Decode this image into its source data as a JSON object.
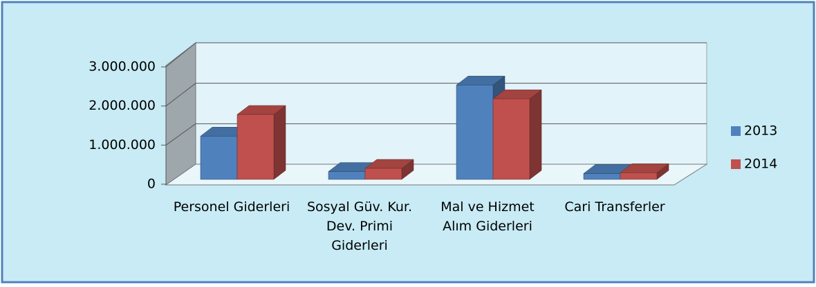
{
  "chart_data": {
    "type": "bar3d",
    "categories": [
      "Personel Giderleri",
      "Sosyal Güv. Kur. Dev. Primi Giderleri",
      "Mal ve Hizmet Alım Giderleri",
      "Cari Transferler"
    ],
    "series": [
      {
        "name": "2013",
        "color": "#4f81bd",
        "values": [
          1100000,
          200000,
          2400000,
          150000
        ]
      },
      {
        "name": "2014",
        "color": "#c0504d",
        "values": [
          1650000,
          280000,
          2050000,
          170000
        ]
      }
    ],
    "ylim": [
      0,
      3000000
    ],
    "yticks": [
      0,
      {
        "value": 1000000,
        "label": "1.000.000"
      },
      {
        "value": 2000000,
        "label": "2.000.000"
      },
      {
        "value": 3000000,
        "label": "3.000.000"
      }
    ],
    "grid": true,
    "legend": "right"
  }
}
